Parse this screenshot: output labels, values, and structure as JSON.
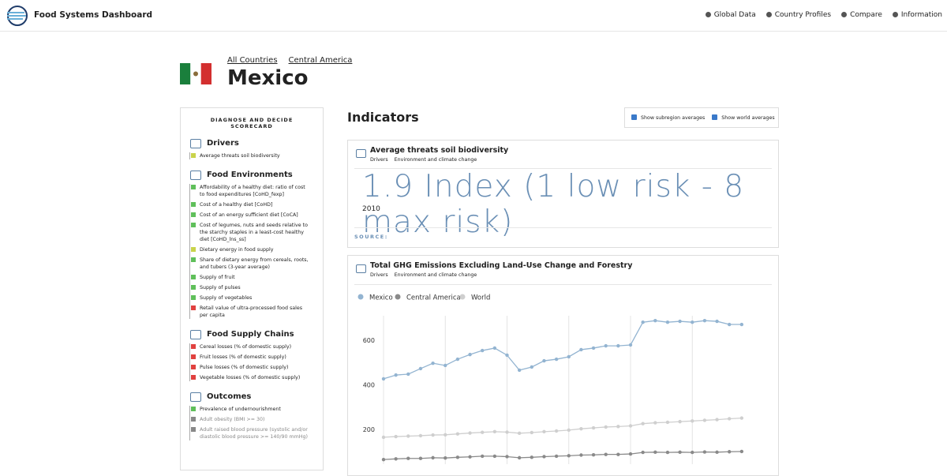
{
  "header": {
    "brand": "Food Systems Dashboard",
    "links": [
      "Global Data",
      "Country Profiles",
      "Compare",
      "Information"
    ]
  },
  "breadcrumb": [
    "All Countries",
    "Central America"
  ],
  "country": "Mexico",
  "scorecard": {
    "title": "DIAGNOSE AND DECIDE SCORECARD",
    "sections": [
      {
        "name": "Drivers",
        "items": [
          {
            "label": "Average threats soil biodiversity",
            "color": "#c9d34a"
          }
        ]
      },
      {
        "name": "Food Environments",
        "items": [
          {
            "label": "Affordability of a healthy diet: ratio of cost to food expenditures [CoHD_fexp]",
            "color": "#5fbf5a"
          },
          {
            "label": "Cost of a healthy diet [CoHD]",
            "color": "#5fbf5a"
          },
          {
            "label": "Cost of an energy sufficient diet [CoCA]",
            "color": "#5fbf5a"
          },
          {
            "label": "Cost of legumes, nuts and seeds relative to the starchy staples in a least-cost healthy diet [CoHD_lns_ss]",
            "color": "#5fbf5a"
          },
          {
            "label": "Dietary energy in food supply",
            "color": "#c9d34a"
          },
          {
            "label": "Share of dietary energy from cereals, roots, and tubers (3-year average)",
            "color": "#5fbf5a"
          },
          {
            "label": "Supply of fruit",
            "color": "#5fbf5a"
          },
          {
            "label": "Supply of pulses",
            "color": "#5fbf5a"
          },
          {
            "label": "Supply of vegetables",
            "color": "#5fbf5a"
          },
          {
            "label": "Retail value of ultra-processed food sales per capita",
            "color": "#e0413f"
          }
        ]
      },
      {
        "name": "Food Supply Chains",
        "items": [
          {
            "label": "Cereal losses (% of domestic supply)",
            "color": "#e0413f"
          },
          {
            "label": "Fruit losses (% of domestic supply)",
            "color": "#e0413f"
          },
          {
            "label": "Pulse losses (% of domestic supply)",
            "color": "#e0413f"
          },
          {
            "label": "Vegetable losses (% of domestic supply)",
            "color": "#e0413f"
          }
        ]
      },
      {
        "name": "Outcomes",
        "items": [
          {
            "label": "Prevalence of undernourishment",
            "color": "#5fbf5a"
          },
          {
            "label": "Adult obesity (BMI >= 30)",
            "color": "#888888"
          },
          {
            "label": "Adult raised blood pressure (systolic and/or diastolic blood pressure >= 140/90 mmHg)",
            "color": "#888888"
          }
        ]
      }
    ]
  },
  "indicators": {
    "title": "Indicators",
    "toggles": [
      "Show subregion averages",
      "Show world averages"
    ],
    "card1": {
      "title": "Average threats soil biodiversity",
      "crumbs": [
        "Drivers",
        "Environment and climate change"
      ],
      "value": "1.9 Index (1 low risk - 8 max risk)",
      "year": "2010",
      "source": "SOURCE:"
    },
    "card2": {
      "title": "Total GHG Emissions Excluding Land-Use Change and Forestry",
      "crumbs": [
        "Drivers",
        "Environment and climate change"
      ]
    }
  },
  "chart_data": {
    "type": "line",
    "categories": [
      null,
      null,
      null,
      null,
      null,
      null,
      null,
      null,
      null,
      null,
      null,
      null,
      null,
      null,
      null,
      null,
      null,
      null,
      null,
      null,
      null,
      null,
      null,
      null,
      null,
      null,
      null,
      null,
      null,
      null
    ],
    "series": [
      {
        "name": "Mexico",
        "color": "#93b4d1",
        "values": [
          427,
          444,
          448,
          473,
          497,
          487,
          515,
          536,
          554,
          565,
          533,
          466,
          480,
          508,
          515,
          526,
          558,
          565,
          575,
          575,
          579,
          681,
          688,
          681,
          685,
          681,
          688,
          685,
          671,
          671
        ]
      },
      {
        "name": "Central America",
        "color": "#8a8a8a",
        "values": [
          65,
          68,
          70,
          70,
          73,
          72,
          75,
          77,
          80,
          80,
          78,
          73,
          75,
          78,
          80,
          82,
          85,
          86,
          88,
          88,
          90,
          97,
          98,
          97,
          98,
          97,
          99,
          98,
          100,
          101
        ]
      },
      {
        "name": "World",
        "color": "#cfcfcf",
        "values": [
          165,
          168,
          170,
          172,
          175,
          176,
          180,
          184,
          187,
          190,
          188,
          183,
          186,
          190,
          193,
          197,
          203,
          207,
          211,
          213,
          216,
          226,
          230,
          232,
          235,
          238,
          241,
          244,
          248,
          251
        ]
      }
    ],
    "ylim": [
      0,
      710
    ],
    "yticks": [
      200,
      400,
      600
    ],
    "grid": true
  }
}
